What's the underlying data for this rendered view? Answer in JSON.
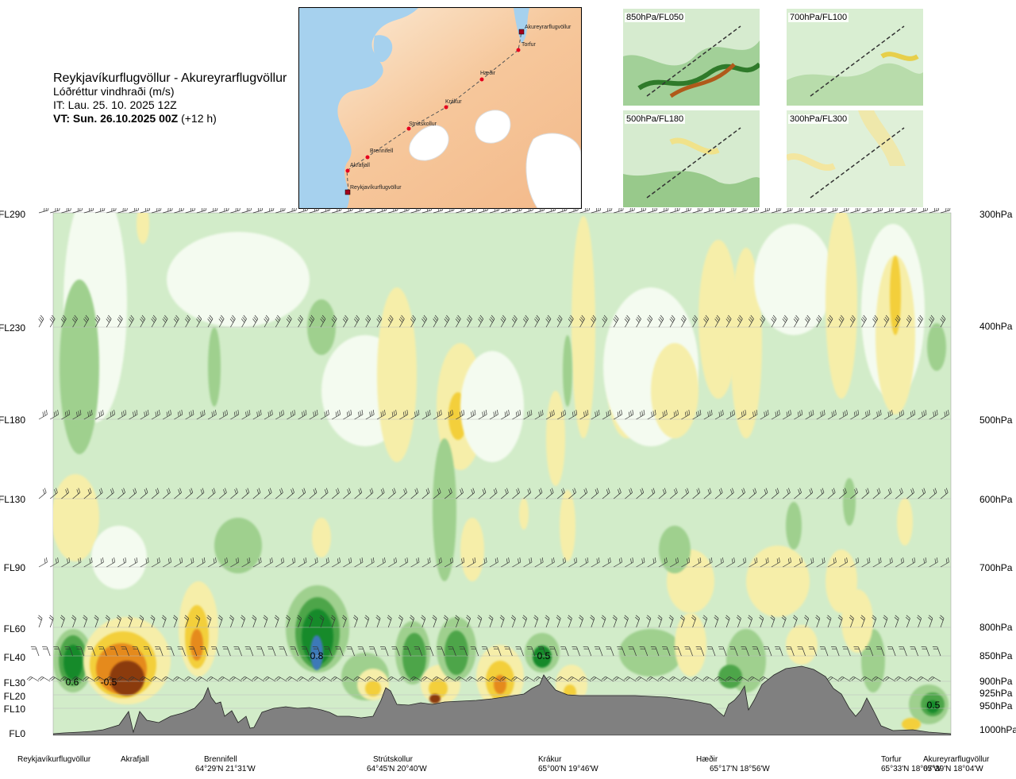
{
  "header": {
    "route": "Reykjavíkurflugvöllur - Akureyrarflugvöllur",
    "parameter": "Lóðréttur vindhraði (m/s)",
    "initial_time": "IT: Lau. 25. 10. 2025 12Z",
    "valid_time_label": "VT: Sun. 26.10.2025 00Z",
    "valid_offset": "(+12 h)"
  },
  "route_map": {
    "waypoints": [
      "Akureyrarflugvöllur",
      "Torfur",
      "Hæðir",
      "Krákur",
      "Strútskollur",
      "Brennifell",
      "Akrafjall",
      "Reykjavíkurflugvöllur"
    ]
  },
  "mini_maps": [
    {
      "label": "850hPa/FL050"
    },
    {
      "label": "700hPa/FL100"
    },
    {
      "label": "500hPa/FL180"
    },
    {
      "label": "300hPa/FL300"
    }
  ],
  "chart_data": {
    "type": "heatmap",
    "title": "Lóðréttur vindhraði (m/s)",
    "left_axis_labels": [
      "FL290",
      "FL230",
      "FL180",
      "FL130",
      "FL90",
      "FL60",
      "FL40",
      "FL30",
      "FL20",
      "FL10",
      "FL0"
    ],
    "right_axis_labels": [
      "300hPa",
      "400hPa",
      "500hPa",
      "600hPa",
      "700hPa",
      "800hPa",
      "850hPa",
      "900hPa",
      "925hPa",
      "950hPa",
      "1000hPa"
    ],
    "pressure_levels_hpa": [
      300,
      400,
      500,
      600,
      700,
      800,
      850,
      900,
      925,
      950,
      1000
    ],
    "contour_labels": [
      {
        "text": "0.6",
        "x_frac": 0.021
      },
      {
        "text": "-0.5",
        "x_frac": 0.062
      },
      {
        "text": "0.8",
        "x_frac": 0.294
      },
      {
        "text": "0.5",
        "x_frac": 0.539
      },
      {
        "text": "0.5",
        "x_frac": 0.981
      }
    ],
    "color_scale": {
      "strong_down": "#8b3a0e",
      "down_3": "#e58a1f",
      "down_2": "#f3cf3a",
      "down_1": "#f6eea9",
      "neutral": "#f4fbf0",
      "up_1": "#d2ecc9",
      "up_2": "#9fd08e",
      "up_3": "#4ea54a",
      "up_4": "#178a2b",
      "strong_up": "#3e79b8"
    },
    "terrain_color": "#808080",
    "waypoints": [
      {
        "name": "Reykjavíkurflugvöllur",
        "coord": "",
        "x_frac": 0.0
      },
      {
        "name": "Akrafjall",
        "coord": "",
        "x_frac": 0.089
      },
      {
        "name": "Brennifell",
        "coord": "64°29'N 21°31'W",
        "x_frac": 0.188
      },
      {
        "name": "Strútskollur",
        "coord": "64°45'N 20°40'W",
        "x_frac": 0.377
      },
      {
        "name": "Krákur",
        "coord": "65°00'N 19°46'W",
        "x_frac": 0.549
      },
      {
        "name": "Hæðir",
        "coord": "65°17'N 18°56'W",
        "x_frac": 0.743
      },
      {
        "name": "Torfur",
        "coord": "65°33'N 18°07'W",
        "x_frac": 0.953
      },
      {
        "name": "Akureyrarflugvöllur",
        "coord": "65°39'N 18°04'W",
        "x_frac": 1.0
      }
    ]
  }
}
